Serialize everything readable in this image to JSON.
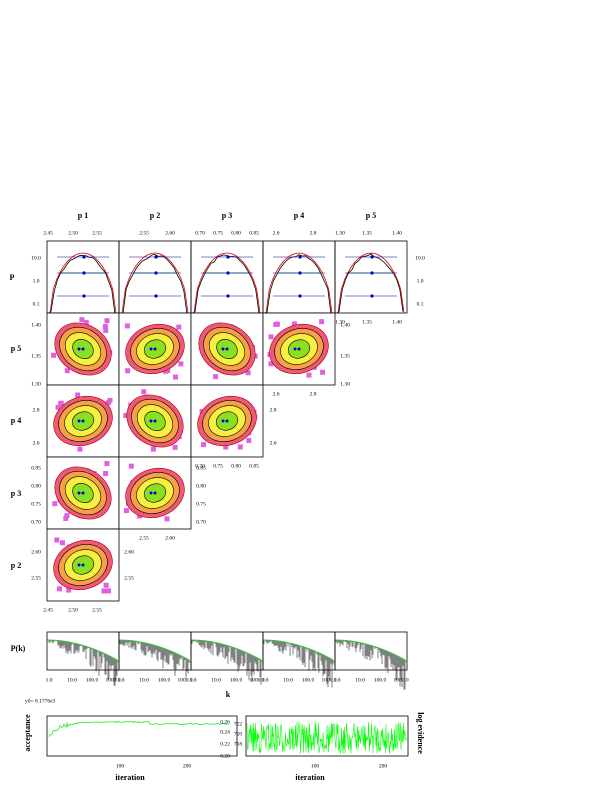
{
  "column_titles": [
    "p 1",
    "p 2",
    "p 3",
    "p 4",
    "p 5"
  ],
  "row_labels": [
    "P",
    "p 5",
    "p 4",
    "p 3",
    "p 2"
  ],
  "top_ticks": [
    [
      "2.45",
      "2.50",
      "2.55"
    ],
    [
      "2.55",
      "2.60"
    ],
    [
      "0.70",
      "0.75",
      "0.80",
      "0.85"
    ],
    [
      "2.6",
      "2.8"
    ],
    [
      "1.30",
      "1.35",
      "1.40"
    ]
  ],
  "p_row_ticks": [
    "10.0",
    "1.0",
    "0.1"
  ],
  "row_ticks": [
    [
      "1.40",
      "1.35",
      "1.30"
    ],
    [
      "2.8",
      "2.6"
    ],
    [
      "0.85",
      "0.80",
      "0.75",
      "0.70"
    ],
    [
      "2.60",
      "2.55"
    ]
  ],
  "pk": {
    "label": "P(k)",
    "ticks": [
      "1.0",
      "10.0",
      "100.0",
      "1000.0"
    ],
    "x_label": "k"
  },
  "acceptance": {
    "header": "y0= 8.1776e3",
    "y_label": "acceptance",
    "ticks": [
      "0.26",
      "0.24",
      "0.22",
      "0.20"
    ],
    "x_ticks": [
      "100",
      "200"
    ],
    "x_label": "iteration"
  },
  "evidence": {
    "y_label": "log evidence",
    "ticks": [
      "722",
      "720",
      "718"
    ],
    "x_ticks": [
      "100",
      "200"
    ],
    "x_label": "iteration"
  }
}
